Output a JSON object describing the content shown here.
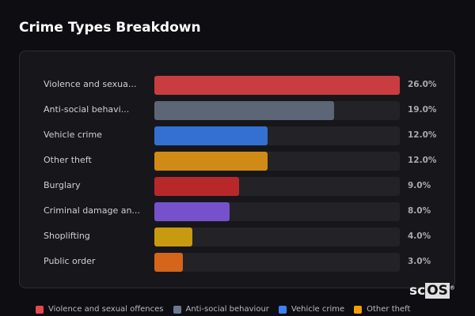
{
  "header": {
    "title": "Crime Types Breakdown"
  },
  "chart_data": {
    "type": "bar",
    "orientation": "horizontal",
    "categories": [
      "Violence and sexua...",
      "Anti-social behavi...",
      "Vehicle crime",
      "Other theft",
      "Burglary",
      "Criminal damage an...",
      "Shoplifting",
      "Public order"
    ],
    "values": [
      26.0,
      19.0,
      12.0,
      12.0,
      9.0,
      8.0,
      4.0,
      3.0
    ],
    "value_labels": [
      "26.0%",
      "19.0%",
      "12.0%",
      "12.0%",
      "9.0%",
      "8.0%",
      "4.0%",
      "3.0%"
    ],
    "colors": [
      "#c93c3f",
      "#5d6676",
      "#3370d2",
      "#d08a16",
      "#b8282a",
      "#7552cc",
      "#c89a10",
      "#d4651a"
    ],
    "xlim": [
      0,
      26
    ],
    "grid": false,
    "legend_position": "bottom",
    "legend": [
      {
        "label": "Violence and sexual offences",
        "color": "#e5484d"
      },
      {
        "label": "Anti-social behaviour",
        "color": "#6b7a90"
      },
      {
        "label": "Vehicle crime",
        "color": "#3b82f6"
      },
      {
        "label": "Other theft",
        "color": "#f59e0b"
      }
    ]
  },
  "watermark": {
    "text_a": "sc",
    "text_b": "OS",
    "mark": "®"
  }
}
